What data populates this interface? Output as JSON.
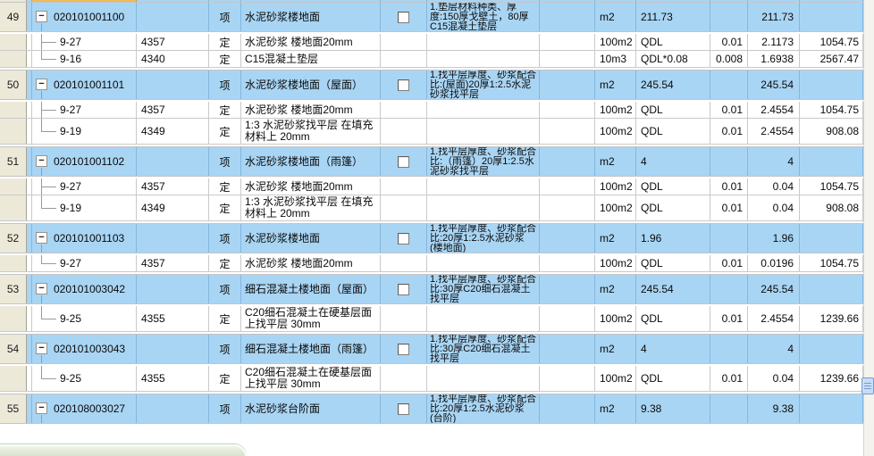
{
  "colors": {
    "item_row_blue": "#A9D5F4",
    "selected_cell_orange": "#EFBA5B",
    "row_number_beige": "#ECE9D8",
    "grid_line_white_rows": "#C9C9C9",
    "grid_line_blue_rows": "#84B6DE",
    "scrollbar_thumb_blue": "#C7DCF7",
    "popup_edge_green": "#D9E4CE"
  },
  "table": {
    "rows": [
      {
        "kind": "item",
        "num": "49",
        "code": "020101001100",
        "type": "项",
        "name": "水泥砂浆楼地面",
        "desc": "1.垫层材料种类、厚度:150厚戈壁土，80厚C15混凝土垫层",
        "unit": "m2",
        "expr": "211.73",
        "factor": "",
        "qty": "211.73",
        "price": ""
      },
      {
        "kind": "sub",
        "sub_code": "9-27",
        "quota_code": "4357",
        "type": "定",
        "name": "水泥砂浆 楼地面20mm",
        "desc": "",
        "unit": "100m2",
        "expr": "QDL",
        "factor": "0.01",
        "qty": "2.1173",
        "price": "1054.75"
      },
      {
        "kind": "sub",
        "sub_code": "9-16",
        "quota_code": "4340",
        "type": "定",
        "name": "C15混凝土垫层",
        "desc": "",
        "unit": "10m3",
        "expr": "QDL*0.08",
        "factor": "0.008",
        "qty": "1.6938",
        "price": "2567.47"
      },
      {
        "kind": "item",
        "num": "50",
        "code": "020101001101",
        "type": "项",
        "name": "水泥砂浆楼地面（屋面）",
        "desc": "1.找平层厚度、砂浆配合比:(屋面)20厚1:2.5水泥砂浆找平层",
        "unit": "m2",
        "expr": "245.54",
        "factor": "",
        "qty": "245.54",
        "price": ""
      },
      {
        "kind": "sub",
        "sub_code": "9-27",
        "quota_code": "4357",
        "type": "定",
        "name": "水泥砂浆 楼地面20mm",
        "desc": "",
        "unit": "100m2",
        "expr": "QDL",
        "factor": "0.01",
        "qty": "2.4554",
        "price": "1054.75"
      },
      {
        "kind": "sub",
        "sub_code": "9-19",
        "quota_code": "4349",
        "type": "定",
        "name": "1:3 水泥砂浆找平层 在填充材料上 20mm",
        "desc": "",
        "unit": "100m2",
        "expr": "QDL",
        "factor": "0.01",
        "qty": "2.4554",
        "price": "908.08"
      },
      {
        "kind": "item",
        "num": "51",
        "code": "020101001102",
        "type": "项",
        "name": "水泥砂浆楼地面（雨篷）",
        "desc": "1.找平层厚度、砂浆配合比:（雨篷）20厚1:2.5水泥砂浆找平层",
        "unit": "m2",
        "expr": "4",
        "factor": "",
        "qty": "4",
        "price": ""
      },
      {
        "kind": "sub",
        "sub_code": "9-27",
        "quota_code": "4357",
        "type": "定",
        "name": "水泥砂浆 楼地面20mm",
        "desc": "",
        "unit": "100m2",
        "expr": "QDL",
        "factor": "0.01",
        "qty": "0.04",
        "price": "1054.75"
      },
      {
        "kind": "sub",
        "sub_code": "9-19",
        "quota_code": "4349",
        "type": "定",
        "name": "1:3 水泥砂浆找平层 在填充材料上 20mm",
        "desc": "",
        "unit": "100m2",
        "expr": "QDL",
        "factor": "0.01",
        "qty": "0.04",
        "price": "908.08"
      },
      {
        "kind": "item",
        "num": "52",
        "code": "020101001103",
        "type": "项",
        "name": "水泥砂浆楼地面",
        "desc": "1.找平层厚度、砂浆配合比:20厚1:2.5水泥砂浆 (楼地面)",
        "unit": "m2",
        "expr": "1.96",
        "factor": "",
        "qty": "1.96",
        "price": ""
      },
      {
        "kind": "sub",
        "sub_code": "9-27",
        "quota_code": "4357",
        "type": "定",
        "name": "水泥砂浆 楼地面20mm",
        "desc": "",
        "unit": "100m2",
        "expr": "QDL",
        "factor": "0.01",
        "qty": "0.0196",
        "price": "1054.75"
      },
      {
        "kind": "item",
        "num": "53",
        "code": "020101003042",
        "type": "项",
        "name": "细石混凝土楼地面（屋面）",
        "desc": "1.找平层厚度、砂浆配合比:30厚C20细石混凝土找平层",
        "unit": "m2",
        "expr": "245.54",
        "factor": "",
        "qty": "245.54",
        "price": ""
      },
      {
        "kind": "sub",
        "sub_code": "9-25",
        "quota_code": "4355",
        "type": "定",
        "name": "C20细石混凝土在硬基层面上找平层 30mm",
        "desc": "",
        "unit": "100m2",
        "expr": "QDL",
        "factor": "0.01",
        "qty": "2.4554",
        "price": "1239.66"
      },
      {
        "kind": "item",
        "num": "54",
        "code": "020101003043",
        "type": "项",
        "name": "细石混凝土楼地面（雨篷）",
        "desc": "1.找平层厚度、砂浆配合比:30厚C20细石混凝土找平层",
        "unit": "m2",
        "expr": "4",
        "factor": "",
        "qty": "4",
        "price": ""
      },
      {
        "kind": "sub",
        "sub_code": "9-25",
        "quota_code": "4355",
        "type": "定",
        "name": "C20细石混凝土在硬基层面上找平层 30mm",
        "desc": "",
        "unit": "100m2",
        "expr": "QDL",
        "factor": "0.01",
        "qty": "0.04",
        "price": "1239.66"
      },
      {
        "kind": "item",
        "num": "55",
        "code": "020108003027",
        "type": "项",
        "name": "水泥砂浆台阶面",
        "desc": "1.找平层厚度、砂浆配合比:20厚1:2.5水泥砂浆 (台阶)",
        "unit": "m2",
        "expr": "9.38",
        "factor": "",
        "qty": "9.38",
        "price": ""
      }
    ]
  }
}
